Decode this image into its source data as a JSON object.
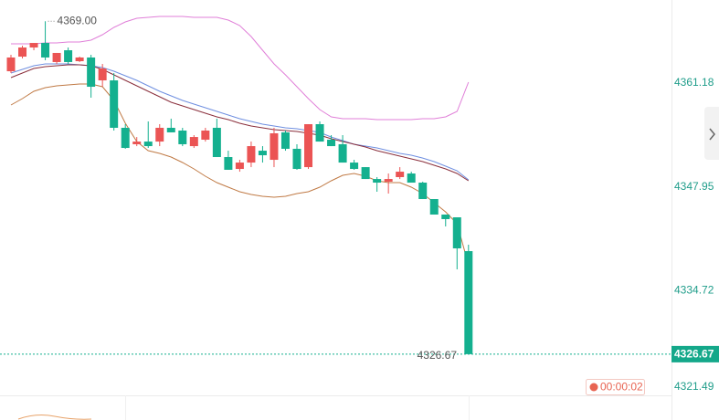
{
  "chart_data": {
    "type": "candlestick",
    "open": [
      4362.64,
      4364.5,
      4365.66,
      4366.24,
      4363.81,
      4365.31,
      4363.92,
      4364.39,
      4361.48,
      4361.48,
      4355.45,
      4353.36,
      4353.7,
      4353.7,
      4355.45,
      4355.1,
      4353.12,
      4353.94,
      4355.45,
      4351.73,
      4350.22,
      4351.03,
      4352.54,
      4351.38,
      4354.87,
      4352.78,
      4350.45,
      4355.91,
      4353.94,
      4353.36,
      4351.03,
      4350.45,
      4348.94,
      4348.6,
      4349.18,
      4349.64,
      4348.48,
      4346.39,
      4344.42,
      4344.07,
      4339.77
    ],
    "high": [
      4364.73,
      4365.89,
      4366.24,
      4369.0,
      4364.97,
      4365.66,
      4364.5,
      4364.73,
      4363.57,
      4362.41,
      4355.91,
      4354.28,
      4356.26,
      4355.91,
      4356.61,
      4355.45,
      4354.52,
      4355.45,
      4356.61,
      4352.54,
      4351.38,
      4353.7,
      4353.12,
      4355.45,
      4355.1,
      4353.36,
      4355.91,
      4356.26,
      4354.52,
      4354.52,
      4351.38,
      4350.45,
      4349.18,
      4349.64,
      4350.45,
      4349.87,
      4348.6,
      4346.39,
      4344.42,
      4344.07,
      4340.59
    ],
    "low": [
      4362.41,
      4364.27,
      4365.31,
      4364.04,
      4363.57,
      4363.57,
      4363.81,
      4359.28,
      4360.67,
      4355.1,
      4352.78,
      4353.12,
      4352.89,
      4353.12,
      4354.87,
      4353.12,
      4352.89,
      4353.7,
      4351.73,
      4350.11,
      4349.87,
      4350.45,
      4351.03,
      4350.45,
      4352.54,
      4350.11,
      4350.22,
      4353.7,
      4353.12,
      4351.03,
      4350.11,
      4348.94,
      4347.32,
      4347.09,
      4348.94,
      4348.48,
      4346.39,
      4344.42,
      4342.91,
      4337.45,
      4326.67
    ],
    "close": [
      4364.39,
      4365.66,
      4366.24,
      4364.39,
      4364.97,
      4363.81,
      4364.39,
      4360.67,
      4362.99,
      4355.45,
      4352.89,
      4353.7,
      4353.12,
      4355.45,
      4354.87,
      4353.36,
      4354.28,
      4355.1,
      4351.73,
      4350.11,
      4351.03,
      4353.12,
      4351.96,
      4354.75,
      4352.78,
      4350.22,
      4355.91,
      4353.7,
      4353.12,
      4351.03,
      4350.22,
      4348.94,
      4348.48,
      4348.94,
      4349.87,
      4348.48,
      4346.39,
      4344.42,
      4343.84,
      4340.12,
      4326.67
    ],
    "up_color": "#eb5454",
    "down_color": "#14b08f",
    "lines": [
      {
        "color": "#e07fd8",
        "values": [
          4366.13,
          4366.13,
          4366.13,
          4366.24,
          4366.24,
          4366.36,
          4366.36,
          4366.59,
          4367.29,
          4368.22,
          4368.91,
          4369.38,
          4369.49,
          4369.61,
          4369.61,
          4369.61,
          4369.49,
          4369.49,
          4369.49,
          4369.15,
          4368.45,
          4367.06,
          4365.31,
          4363.57,
          4362.18,
          4360.67,
          4359.16,
          4357.77,
          4356.84,
          4356.61,
          4356.61,
          4356.61,
          4356.49,
          4356.49,
          4356.49,
          4356.49,
          4356.61,
          4356.61,
          4356.84,
          4357.54,
          4361.25
        ]
      },
      {
        "color": "#c07a45",
        "values": [
          4358.35,
          4359.16,
          4360.09,
          4360.55,
          4360.79,
          4360.9,
          4361.02,
          4361.02,
          4360.67,
          4358.93,
          4356.03,
          4353.7,
          4352.54,
          4352.2,
          4351.73,
          4351.03,
          4350.22,
          4349.29,
          4348.48,
          4347.9,
          4347.32,
          4346.97,
          4346.74,
          4346.62,
          4346.74,
          4347.09,
          4347.32,
          4347.9,
          4348.71,
          4349.41,
          4349.64,
          4349.29,
          4348.71,
          4348.48,
          4348.48,
          4347.9,
          4347.09,
          4345.93,
          4344.76,
          4343.26,
          4338.03
        ]
      },
      {
        "color": "#6f8fe0",
        "values": [
          4362.41,
          4362.88,
          4363.34,
          4363.57,
          4363.57,
          4363.57,
          4363.46,
          4363.34,
          4363.11,
          4362.64,
          4362.06,
          4361.48,
          4360.79,
          4360.09,
          4359.51,
          4358.93,
          4358.46,
          4358.0,
          4357.54,
          4357.07,
          4356.61,
          4356.26,
          4355.91,
          4355.68,
          4355.45,
          4355.33,
          4355.1,
          4354.87,
          4354.28,
          4353.82,
          4353.36,
          4353.12,
          4352.89,
          4352.54,
          4352.2,
          4351.96,
          4351.61,
          4351.15,
          4350.57,
          4349.99,
          4348.83
        ]
      },
      {
        "color": "#8a2f3c",
        "values": [
          4361.83,
          4362.41,
          4362.99,
          4363.22,
          4363.34,
          4363.46,
          4363.46,
          4363.34,
          4362.88,
          4362.18,
          4361.48,
          4360.79,
          4360.09,
          4359.39,
          4358.7,
          4358.23,
          4357.77,
          4357.3,
          4356.84,
          4356.49,
          4356.03,
          4355.68,
          4355.45,
          4355.21,
          4355.1,
          4354.98,
          4354.75,
          4354.52,
          4354.05,
          4353.7,
          4353.36,
          4353.01,
          4352.54,
          4352.2,
          4351.85,
          4351.5,
          4351.15,
          4350.69,
          4350.22,
          4349.64,
          4348.71
        ]
      }
    ],
    "ylim": [
      4321.2,
      4371.7
    ],
    "yticks": [
      4361.18,
      4347.95,
      4334.72,
      4321.49
    ],
    "axis_color": "#1f9d8a",
    "high_annotation": {
      "value": 4369.0,
      "label": "4369.00"
    },
    "last_price": 4326.67,
    "timer": "00:00:02"
  }
}
